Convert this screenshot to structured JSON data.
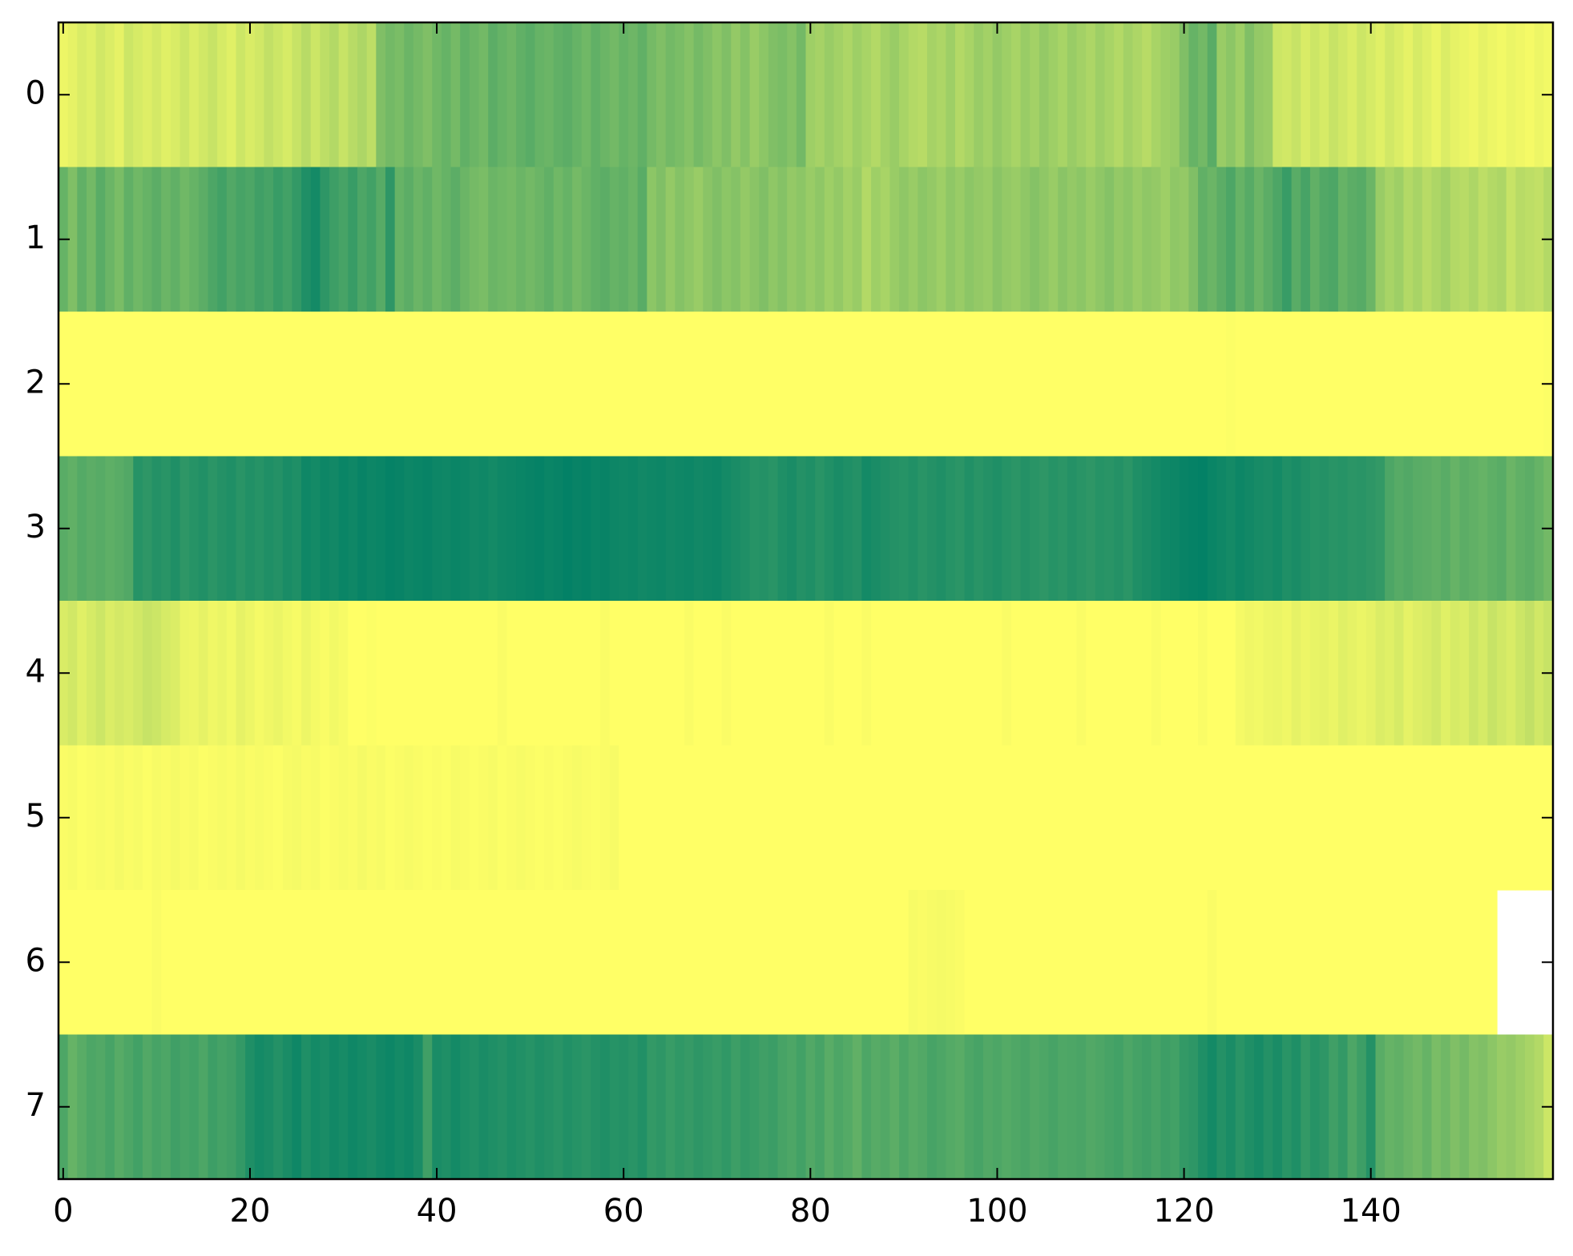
{
  "chart_data": {
    "type": "heatmap",
    "colormap": "summer",
    "xlim": [
      -0.5,
      159.5
    ],
    "ylim": [
      7.5,
      -0.5
    ],
    "xticks": [
      0,
      20,
      40,
      60,
      80,
      100,
      120,
      140
    ],
    "yticks": [
      0,
      1,
      2,
      3,
      4,
      5,
      6,
      7
    ],
    "values": [
      [
        0.93,
        0.9,
        0.85,
        0.88,
        0.82,
        0.86,
        0.9,
        0.8,
        0.84,
        0.87,
        0.83,
        0.88,
        0.85,
        0.8,
        0.86,
        0.82,
        0.78,
        0.84,
        0.88,
        0.8,
        0.85,
        0.82,
        0.76,
        0.8,
        0.84,
        0.78,
        0.72,
        0.8,
        0.74,
        0.7,
        0.78,
        0.72,
        0.68,
        0.74,
        0.5,
        0.45,
        0.48,
        0.42,
        0.46,
        0.5,
        0.44,
        0.4,
        0.46,
        0.38,
        0.42,
        0.45,
        0.36,
        0.4,
        0.43,
        0.38,
        0.35,
        0.4,
        0.42,
        0.38,
        0.36,
        0.4,
        0.44,
        0.38,
        0.42,
        0.45,
        0.4,
        0.43,
        0.38,
        0.46,
        0.5,
        0.45,
        0.48,
        0.52,
        0.46,
        0.5,
        0.55,
        0.5,
        0.58,
        0.52,
        0.6,
        0.55,
        0.5,
        0.48,
        0.52,
        0.45,
        0.62,
        0.65,
        0.6,
        0.64,
        0.68,
        0.62,
        0.66,
        0.7,
        0.64,
        0.6,
        0.66,
        0.7,
        0.72,
        0.65,
        0.68,
        0.62,
        0.7,
        0.66,
        0.6,
        0.64,
        0.58,
        0.62,
        0.66,
        0.6,
        0.64,
        0.58,
        0.62,
        0.66,
        0.6,
        0.64,
        0.68,
        0.62,
        0.66,
        0.7,
        0.64,
        0.68,
        0.72,
        0.66,
        0.62,
        0.6,
        0.5,
        0.4,
        0.45,
        0.35,
        0.6,
        0.55,
        0.62,
        0.5,
        0.58,
        0.6,
        0.8,
        0.82,
        0.78,
        0.85,
        0.8,
        0.84,
        0.78,
        0.82,
        0.86,
        0.8,
        0.84,
        0.88,
        0.82,
        0.86,
        0.9,
        0.84,
        0.88,
        0.92,
        0.86,
        0.9,
        0.92,
        0.94,
        0.9,
        0.93,
        0.95,
        0.92,
        0.94,
        0.96,
        0.93,
        0.95
      ],
      [
        0.4,
        0.5,
        0.38,
        0.45,
        0.35,
        0.42,
        0.48,
        0.38,
        0.44,
        0.4,
        0.36,
        0.42,
        0.38,
        0.44,
        0.4,
        0.36,
        0.3,
        0.26,
        0.32,
        0.28,
        0.3,
        0.25,
        0.28,
        0.22,
        0.26,
        0.2,
        0.12,
        0.08,
        0.18,
        0.24,
        0.28,
        0.22,
        0.3,
        0.26,
        0.34,
        0.18,
        0.4,
        0.36,
        0.42,
        0.38,
        0.44,
        0.4,
        0.36,
        0.42,
        0.46,
        0.48,
        0.42,
        0.44,
        0.46,
        0.42,
        0.45,
        0.42,
        0.38,
        0.44,
        0.4,
        0.46,
        0.42,
        0.38,
        0.36,
        0.4,
        0.38,
        0.42,
        0.35,
        0.55,
        0.5,
        0.58,
        0.52,
        0.56,
        0.6,
        0.54,
        0.5,
        0.55,
        0.52,
        0.58,
        0.54,
        0.5,
        0.56,
        0.52,
        0.58,
        0.55,
        0.6,
        0.56,
        0.62,
        0.58,
        0.64,
        0.6,
        0.7,
        0.62,
        0.66,
        0.6,
        0.56,
        0.6,
        0.55,
        0.58,
        0.62,
        0.56,
        0.6,
        0.55,
        0.58,
        0.6,
        0.54,
        0.58,
        0.6,
        0.56,
        0.52,
        0.56,
        0.6,
        0.54,
        0.58,
        0.55,
        0.6,
        0.56,
        0.52,
        0.58,
        0.55,
        0.6,
        0.56,
        0.58,
        0.62,
        0.56,
        0.58,
        0.5,
        0.38,
        0.42,
        0.36,
        0.3,
        0.4,
        0.34,
        0.42,
        0.36,
        0.3,
        0.22,
        0.35,
        0.28,
        0.38,
        0.32,
        0.3,
        0.4,
        0.36,
        0.34,
        0.42,
        0.6,
        0.66,
        0.62,
        0.7,
        0.66,
        0.72,
        0.68,
        0.64,
        0.7,
        0.72,
        0.68,
        0.74,
        0.7,
        0.68,
        0.78,
        0.72,
        0.74,
        0.76,
        0.7
      ],
      [
        1,
        1,
        1,
        1,
        1,
        1,
        1,
        1,
        1,
        1,
        1,
        1,
        1,
        1,
        1,
        1,
        1,
        1,
        1,
        1,
        1,
        1,
        1,
        1,
        1,
        1,
        1,
        1,
        1,
        1,
        1,
        1,
        1,
        1,
        1,
        1,
        1,
        1,
        1,
        1,
        1,
        1,
        1,
        1,
        1,
        1,
        1,
        1,
        1,
        1,
        1,
        1,
        1,
        1,
        1,
        1,
        1,
        1,
        1,
        1,
        1,
        1,
        1,
        1,
        1,
        1,
        1,
        1,
        1,
        1,
        1,
        1,
        1,
        1,
        1,
        1,
        1,
        1,
        1,
        1,
        1,
        1,
        1,
        1,
        1,
        1,
        1,
        1,
        1,
        1,
        1,
        1,
        1,
        1,
        1,
        1,
        1,
        1,
        1,
        1,
        1,
        1,
        1,
        1,
        1,
        1,
        1,
        1,
        1,
        1,
        1,
        1,
        1,
        1,
        1,
        1,
        1,
        1,
        1,
        1,
        1,
        1,
        1,
        1,
        1,
        0.99,
        1,
        1,
        1,
        1,
        1,
        1,
        1,
        1,
        1,
        1,
        1,
        1,
        1,
        1,
        1,
        1,
        1,
        1,
        1,
        1,
        1,
        1,
        1,
        1,
        1,
        1,
        1,
        1,
        1,
        1,
        1,
        1,
        1,
        0.99
      ],
      [
        0.35,
        0.38,
        0.33,
        0.36,
        0.34,
        0.37,
        0.35,
        0.32,
        0.15,
        0.18,
        0.14,
        0.16,
        0.12,
        0.18,
        0.15,
        0.13,
        0.17,
        0.14,
        0.12,
        0.16,
        0.13,
        0.15,
        0.12,
        0.14,
        0.1,
        0.12,
        0.06,
        0.08,
        0.05,
        0.07,
        0.04,
        0.06,
        0.03,
        0.05,
        0.04,
        0.02,
        0.03,
        0.05,
        0.04,
        0.03,
        0.05,
        0.06,
        0.04,
        0.05,
        0.07,
        0.06,
        0.08,
        0.06,
        0.05,
        0.04,
        0.03,
        0.02,
        0.04,
        0.03,
        0.01,
        0.03,
        0.02,
        0.04,
        0.03,
        0.05,
        0.06,
        0.05,
        0.07,
        0.06,
        0.05,
        0.07,
        0.06,
        0.05,
        0.07,
        0.06,
        0.05,
        0.08,
        0.1,
        0.12,
        0.15,
        0.14,
        0.16,
        0.12,
        0.1,
        0.14,
        0.12,
        0.16,
        0.13,
        0.1,
        0.12,
        0.14,
        0.08,
        0.1,
        0.12,
        0.14,
        0.15,
        0.13,
        0.16,
        0.14,
        0.12,
        0.15,
        0.17,
        0.13,
        0.16,
        0.14,
        0.12,
        0.15,
        0.17,
        0.14,
        0.16,
        0.18,
        0.15,
        0.17,
        0.14,
        0.16,
        0.18,
        0.15,
        0.16,
        0.14,
        0.17,
        0.12,
        0.1,
        0.08,
        0.06,
        0.05,
        0.03,
        0.02,
        0.01,
        0.04,
        0.06,
        0.08,
        0.05,
        0.07,
        0.09,
        0.1,
        0.08,
        0.12,
        0.1,
        0.13,
        0.15,
        0.14,
        0.16,
        0.15,
        0.17,
        0.16,
        0.18,
        0.2,
        0.3,
        0.34,
        0.32,
        0.35,
        0.36,
        0.38,
        0.35,
        0.4,
        0.36,
        0.38,
        0.4,
        0.37,
        0.35,
        0.42,
        0.38,
        0.36,
        0.4,
        0.45
      ],
      [
        0.85,
        0.82,
        0.88,
        0.84,
        0.8,
        0.86,
        0.83,
        0.85,
        0.82,
        0.78,
        0.8,
        0.84,
        0.86,
        0.92,
        0.93,
        0.9,
        0.94,
        0.92,
        0.95,
        0.9,
        0.93,
        0.96,
        0.94,
        0.92,
        0.95,
        0.97,
        0.93,
        0.96,
        0.98,
        0.95,
        0.97,
        1,
        1,
        0.99,
        1,
        1,
        1,
        1,
        1,
        1,
        1,
        1,
        1,
        1,
        1,
        1,
        1,
        0.98,
        1,
        1,
        1,
        1,
        1,
        1,
        1,
        1,
        1,
        1,
        0.98,
        1,
        1,
        1,
        1,
        1,
        1,
        1,
        1,
        0.98,
        1,
        1,
        1,
        0.98,
        1,
        1,
        1,
        1,
        1,
        1,
        1,
        1,
        1,
        1,
        0.98,
        1,
        1,
        1,
        0.98,
        1,
        1,
        1,
        1,
        1,
        1,
        1,
        1,
        1,
        1,
        1,
        1,
        1,
        1,
        0.98,
        1,
        1,
        1,
        1,
        1,
        1,
        1,
        0.98,
        1,
        1,
        1,
        1,
        1,
        1,
        1,
        0.98,
        1,
        1,
        1,
        1,
        0.98,
        1,
        1,
        1,
        0.96,
        0.94,
        0.95,
        0.93,
        0.92,
        0.94,
        0.9,
        0.93,
        0.91,
        0.9,
        0.92,
        0.88,
        0.9,
        0.92,
        0.9,
        0.86,
        0.88,
        0.84,
        0.9,
        0.87,
        0.85,
        0.82,
        0.88,
        0.84,
        0.86,
        0.8,
        0.84,
        0.78,
        0.82,
        0.85,
        0.8,
        0.76,
        0.82,
        0.78
      ],
      [
        0.98,
        0.97,
        0.99,
        0.98,
        0.97,
        0.98,
        0.96,
        0.98,
        0.97,
        0.99,
        0.97,
        0.98,
        0.96,
        0.98,
        0.97,
        0.99,
        0.98,
        0.97,
        0.98,
        0.96,
        0.98,
        0.97,
        0.98,
        0.99,
        0.97,
        0.96,
        0.98,
        0.97,
        0.99,
        0.98,
        0.97,
        0.98,
        0.96,
        0.98,
        0.97,
        0.99,
        0.98,
        0.97,
        0.98,
        0.99,
        0.98,
        0.99,
        0.97,
        0.98,
        0.99,
        0.98,
        0.97,
        0.99,
        0.98,
        0.97,
        0.98,
        0.99,
        0.98,
        0.99,
        0.98,
        0.97,
        0.98,
        0.99,
        0.98,
        0.97,
        1,
        1,
        1,
        1,
        1,
        1,
        1,
        1,
        1,
        1,
        1,
        1,
        1,
        1,
        1,
        1,
        1,
        1,
        1,
        1,
        1,
        1,
        1,
        1,
        1,
        1,
        1,
        1,
        1,
        1,
        1,
        1,
        1,
        1,
        1,
        1,
        1,
        1,
        1,
        1,
        1,
        1,
        1,
        1,
        1,
        1,
        1,
        1,
        1,
        1,
        1,
        1,
        1,
        1,
        1,
        1,
        1,
        1,
        1,
        1,
        1,
        1,
        1,
        1,
        1,
        1,
        1,
        1,
        1,
        1,
        1,
        1,
        1,
        1,
        1,
        1,
        1,
        1,
        1,
        1,
        1,
        1,
        1,
        1,
        1,
        1,
        1,
        1,
        1,
        1,
        1,
        1,
        1,
        1,
        1,
        1,
        1,
        1,
        1,
        1
      ],
      [
        1,
        1,
        1,
        1,
        1,
        1,
        1,
        1,
        1,
        1,
        0.98,
        1,
        1,
        1,
        1,
        1,
        1,
        1,
        1,
        1,
        1,
        1,
        1,
        1,
        1,
        1,
        1,
        1,
        1,
        1,
        1,
        1,
        1,
        1,
        1,
        1,
        1,
        1,
        1,
        1,
        1,
        1,
        1,
        1,
        1,
        1,
        1,
        1,
        1,
        1,
        1,
        1,
        1,
        1,
        1,
        1,
        1,
        1,
        1,
        1,
        1,
        1,
        1,
        1,
        1,
        1,
        1,
        1,
        1,
        1,
        1,
        1,
        1,
        1,
        1,
        1,
        1,
        1,
        1,
        1,
        1,
        1,
        1,
        1,
        1,
        1,
        1,
        1,
        1,
        1,
        1,
        0.97,
        0.98,
        0.97,
        0.96,
        0.97,
        0.98,
        1,
        1,
        1,
        1,
        1,
        1,
        1,
        1,
        1,
        1,
        1,
        1,
        1,
        1,
        1,
        1,
        1,
        1,
        1,
        1,
        1,
        1,
        1,
        1,
        1,
        1,
        0.98,
        1,
        1,
        1,
        1,
        1,
        1,
        1,
        1,
        1,
        1,
        1,
        1,
        1,
        1,
        1,
        1,
        1,
        1,
        1,
        1,
        1,
        1,
        1,
        1,
        1,
        1,
        1,
        1,
        1,
        1
      ],
      [
        0.3,
        0.4,
        0.35,
        0.3,
        0.32,
        0.28,
        0.34,
        0.3,
        0.26,
        0.32,
        0.28,
        0.3,
        0.25,
        0.28,
        0.26,
        0.3,
        0.24,
        0.27,
        0.25,
        0.2,
        0.12,
        0.08,
        0.1,
        0.14,
        0.1,
        0.06,
        0.12,
        0.08,
        0.1,
        0.07,
        0.09,
        0.06,
        0.08,
        0.1,
        0.07,
        0.05,
        0.08,
        0.06,
        0.1,
        0.25,
        0.1,
        0.12,
        0.08,
        0.11,
        0.13,
        0.1,
        0.12,
        0.14,
        0.11,
        0.13,
        0.15,
        0.12,
        0.14,
        0.16,
        0.13,
        0.15,
        0.17,
        0.14,
        0.12,
        0.15,
        0.14,
        0.16,
        0.13,
        0.2,
        0.18,
        0.22,
        0.19,
        0.21,
        0.18,
        0.2,
        0.22,
        0.19,
        0.24,
        0.2,
        0.22,
        0.25,
        0.23,
        0.28,
        0.3,
        0.26,
        0.32,
        0.28,
        0.35,
        0.3,
        0.33,
        0.38,
        0.3,
        0.34,
        0.32,
        0.36,
        0.3,
        0.34,
        0.32,
        0.28,
        0.3,
        0.33,
        0.35,
        0.3,
        0.28,
        0.32,
        0.3,
        0.33,
        0.31,
        0.29,
        0.32,
        0.3,
        0.28,
        0.31,
        0.3,
        0.29,
        0.32,
        0.3,
        0.28,
        0.26,
        0.3,
        0.27,
        0.25,
        0.28,
        0.24,
        0.26,
        0.2,
        0.18,
        0.12,
        0.08,
        0.14,
        0.1,
        0.16,
        0.12,
        0.09,
        0.14,
        0.1,
        0.16,
        0.12,
        0.2,
        0.15,
        0.18,
        0.25,
        0.2,
        0.3,
        0.24,
        0.14,
        0.35,
        0.4,
        0.38,
        0.42,
        0.45,
        0.4,
        0.48,
        0.44,
        0.5,
        0.46,
        0.52,
        0.5,
        0.55,
        0.6,
        0.58,
        0.62,
        0.66,
        0.7,
        0.8
      ]
    ]
  }
}
